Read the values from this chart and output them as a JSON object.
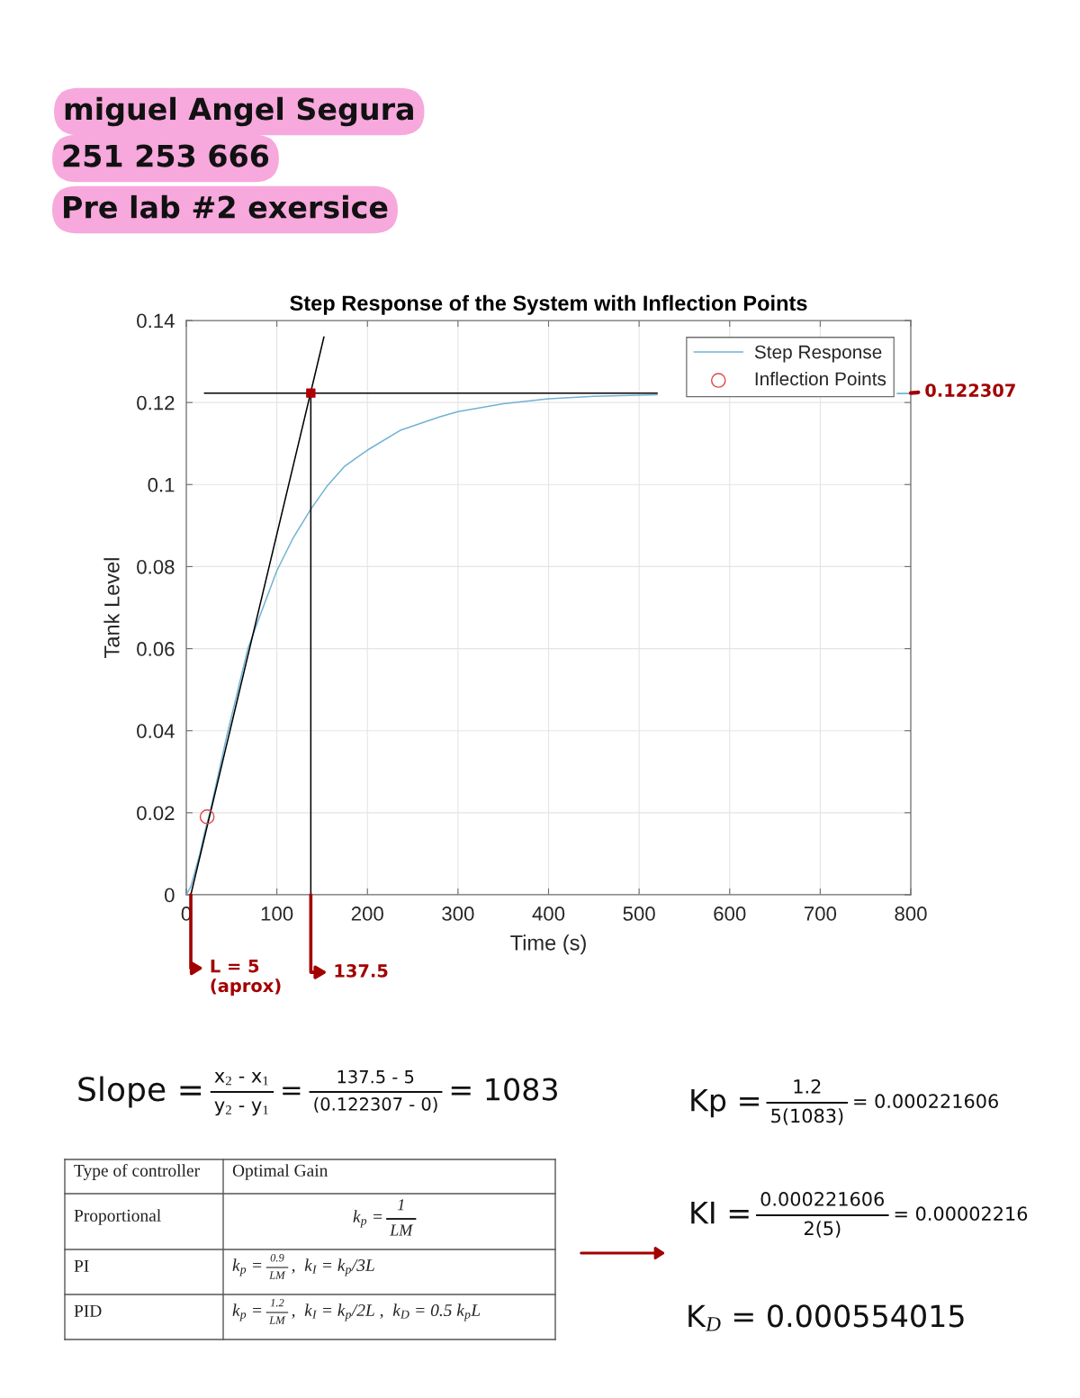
{
  "chart_data": {
    "type": "line",
    "title": "Step Response of the System with Inflection Points",
    "xlabel": "Time (s)",
    "ylabel": "Tank Level",
    "xlim": [
      0,
      800
    ],
    "xticks": [
      0,
      100,
      200,
      300,
      400,
      500,
      600,
      700,
      800
    ],
    "ylim": [
      0,
      0.14
    ],
    "yticks": [
      0,
      0.02,
      0.04,
      0.06,
      0.08,
      0.1,
      0.12,
      0.14
    ],
    "grid": true,
    "legend": "top right",
    "series": [
      {
        "name": "Step Response",
        "color": "#72b2d4",
        "x": [
          0,
          5,
          10,
          15,
          20,
          26,
          35,
          45,
          56,
          68,
          83,
          100,
          118,
          137.5,
          155,
          175,
          200,
          237,
          280,
          300,
          350,
          400,
          450,
          500,
          520,
          650,
          785,
          800
        ],
        "values": [
          0,
          0.002,
          0.006,
          0.01,
          0.015,
          0.02,
          0.029,
          0.039,
          0.049,
          0.06,
          0.069,
          0.079,
          0.087,
          0.094,
          0.0995,
          0.1045,
          0.1084,
          0.1133,
          0.1165,
          0.1178,
          0.1197,
          0.1209,
          0.1215,
          0.1218,
          0.1219,
          null,
          0.1222,
          0.1222
        ]
      },
      {
        "name": "Inflection Points",
        "type": "scatter",
        "marker": "circle",
        "color": "#e04848",
        "x": [
          23
        ],
        "values": [
          0.019
        ]
      },
      {
        "color": "#000000",
        "x": [
          5,
          152
        ],
        "values": [
          0,
          0.136
        ]
      },
      {
        "color": "#000000",
        "x": [
          20,
          520
        ],
        "values": [
          0.1223,
          0.1223
        ]
      },
      {
        "color": "#000000",
        "x": [
          137.5,
          137.5
        ],
        "values": [
          0,
          0.1223
        ]
      },
      {
        "type": "scatter",
        "marker": "square",
        "color": "#b00000",
        "x": [
          137.5
        ],
        "values": [
          0.1223
        ]
      }
    ],
    "annotations": [
      "miguel Angel Segura",
      "251 253 666",
      "Pre lab #2 exersice",
      {
        "text": "0.122307",
        "x": 800,
        "y": 0.1223
      },
      {
        "text": "L = 5\n(aprox)",
        "x": 5,
        "y": 0
      },
      {
        "text": "137.5",
        "x": 137.5,
        "y": 0
      },
      "Slope =",
      "x$_{2}$ - x$_{1}$",
      "y$_{2}$ - y$_{1}$",
      "=",
      "137.5 - 5",
      "(0.122307 - 0)",
      "= 1083",
      "Kp =",
      "1.2",
      "5(1083)",
      "= 0.000221606",
      "KI =",
      "0.000221606",
      "2(5)",
      "= 0.00002216",
      "K$_{D}$ = 0.000554015",
      "Type of controller",
      "Optimal Gain",
      "Proportional",
      "k$_{p}$ =",
      "1",
      "LM",
      "PI",
      "k$_{p}$ =",
      "0.9",
      "LM",
      ",  k$_{I}$ = k$_{p}$/3L",
      "PID",
      "k$_{p}$ =",
      "1.2",
      "LM",
      ",  k$_{I}$ = k$_{p}$/2L ,  k$_{D}$ = 0.5 k$_{p}$L"
    ]
  }
}
